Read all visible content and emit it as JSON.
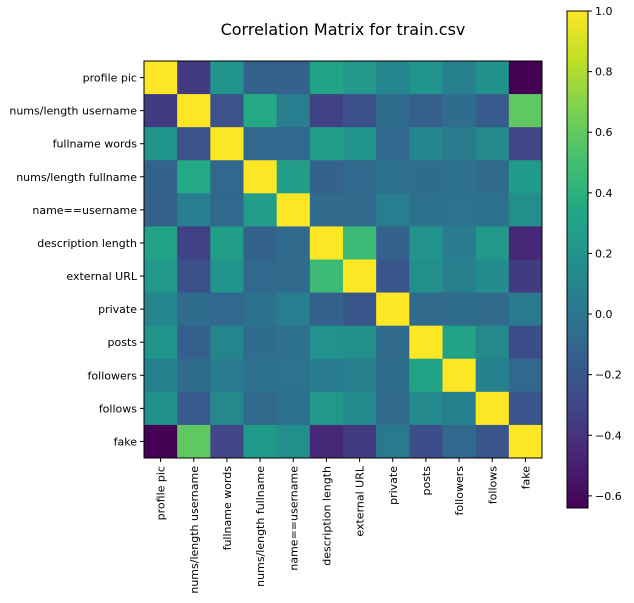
{
  "chart_data": {
    "type": "heatmap",
    "title": "Correlation Matrix for train.csv",
    "labels": [
      "profile pic",
      "nums/length username",
      "fullname words",
      "nums/length fullname",
      "name==username",
      "description length",
      "external URL",
      "private",
      "posts",
      "followers",
      "follows",
      "fake"
    ],
    "matrix": [
      [
        1.0,
        -0.36,
        0.21,
        -0.12,
        -0.13,
        0.3,
        0.23,
        0.1,
        0.2,
        0.07,
        0.18,
        -0.64
      ],
      [
        -0.36,
        1.0,
        -0.23,
        0.35,
        0.05,
        -0.32,
        -0.24,
        -0.06,
        -0.15,
        -0.06,
        -0.17,
        0.59
      ],
      [
        0.21,
        -0.23,
        1.0,
        -0.09,
        -0.09,
        0.27,
        0.2,
        -0.08,
        0.1,
        0.04,
        0.12,
        -0.3
      ],
      [
        -0.12,
        0.35,
        -0.09,
        1.0,
        0.27,
        -0.12,
        -0.09,
        -0.03,
        -0.06,
        -0.03,
        -0.07,
        0.25
      ],
      [
        -0.13,
        0.05,
        -0.09,
        0.27,
        1.0,
        -0.07,
        -0.07,
        0.05,
        -0.03,
        -0.02,
        -0.03,
        0.17
      ],
      [
        0.3,
        -0.32,
        0.27,
        -0.12,
        -0.07,
        1.0,
        0.47,
        -0.12,
        0.19,
        0.04,
        0.23,
        -0.46
      ],
      [
        0.23,
        -0.24,
        0.2,
        -0.09,
        -0.07,
        0.47,
        1.0,
        -0.2,
        0.17,
        0.06,
        0.15,
        -0.36
      ],
      [
        0.1,
        -0.06,
        -0.08,
        -0.03,
        0.05,
        -0.12,
        -0.2,
        1.0,
        -0.07,
        -0.06,
        -0.07,
        0.03
      ],
      [
        0.2,
        -0.15,
        0.1,
        -0.06,
        -0.03,
        0.19,
        0.17,
        -0.07,
        1.0,
        0.31,
        0.12,
        -0.25
      ],
      [
        0.07,
        -0.06,
        0.04,
        -0.03,
        -0.02,
        0.04,
        0.06,
        -0.06,
        0.31,
        1.0,
        0.07,
        -0.09
      ],
      [
        0.18,
        -0.17,
        0.12,
        -0.07,
        -0.03,
        0.23,
        0.15,
        -0.07,
        0.12,
        0.07,
        1.0,
        -0.21
      ],
      [
        -0.64,
        0.59,
        -0.3,
        0.25,
        0.17,
        -0.46,
        -0.36,
        0.03,
        -0.25,
        -0.09,
        -0.21,
        1.0
      ]
    ],
    "colormap": "viridis",
    "vmin": -0.64,
    "vmax": 1.0,
    "colorbar_ticks": [
      "1.0",
      "0.8",
      "0.6",
      "0.4",
      "0.2",
      "0.0",
      "−0.2",
      "−0.4",
      "−0.6"
    ],
    "colorbar_tick_values": [
      1.0,
      0.8,
      0.6,
      0.4,
      0.2,
      0.0,
      -0.2,
      -0.4,
      -0.6
    ]
  }
}
